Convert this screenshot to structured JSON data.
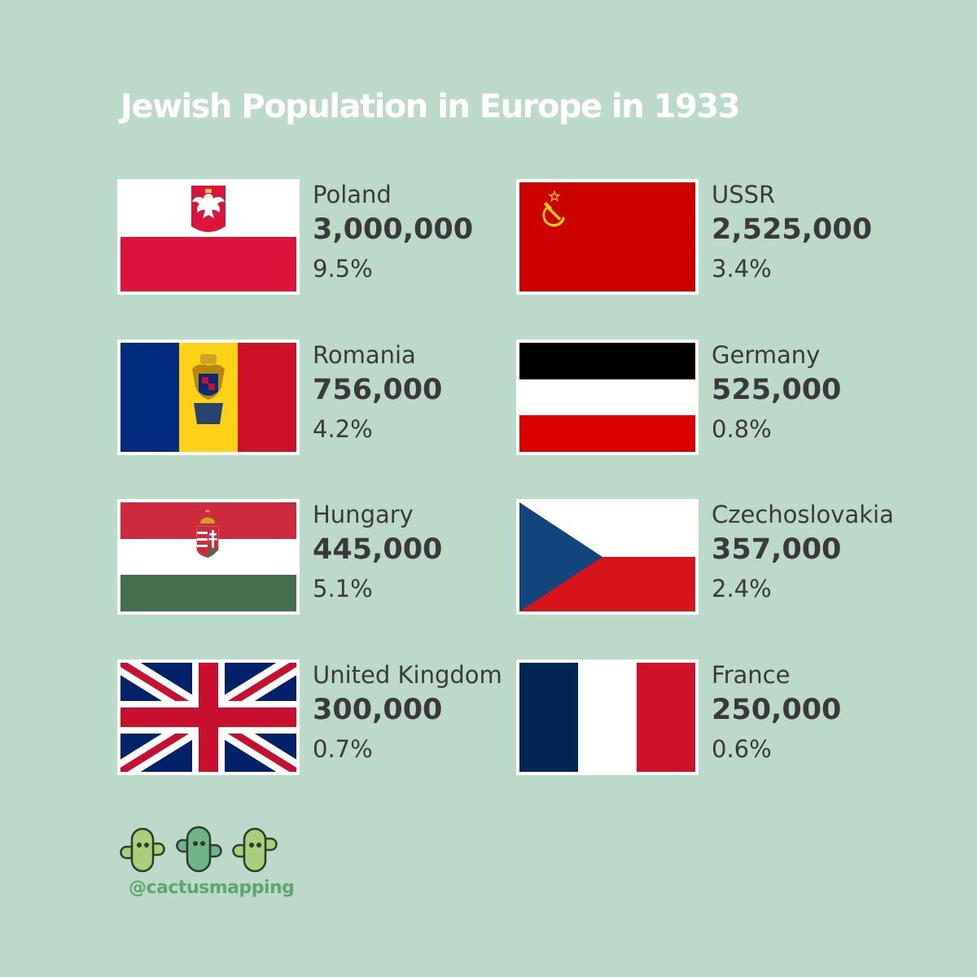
{
  "title": "Jewish Population in Europe in 1933",
  "entries": [
    {
      "country": "Poland",
      "population": "3,000,000",
      "percent": "9.5%",
      "flag": "poland-flag"
    },
    {
      "country": "USSR",
      "population": "2,525,000",
      "percent": "3.4%",
      "flag": "ussr-flag"
    },
    {
      "country": "Romania",
      "population": "756,000",
      "percent": "4.2%",
      "flag": "romania-flag"
    },
    {
      "country": "Germany",
      "population": "525,000",
      "percent": "0.8%",
      "flag": "germany-flag"
    },
    {
      "country": "Hungary",
      "population": "445,000",
      "percent": "5.1%",
      "flag": "hungary-flag"
    },
    {
      "country": "Czechoslovakia",
      "population": "357,000",
      "percent": "2.4%",
      "flag": "czechoslovakia-flag"
    },
    {
      "country": "United Kingdom",
      "population": "300,000",
      "percent": "0.7%",
      "flag": "united-kingdom-flag"
    },
    {
      "country": "France",
      "population": "250,000",
      "percent": "0.6%",
      "flag": "france-flag"
    }
  ],
  "branding": {
    "handle": "@cactusmapping",
    "logo_icon": "cactus-icon"
  },
  "colors": {
    "background": "#bcdaca",
    "title": "#ffffff",
    "text": "#3a3a3a",
    "handle": "#5aa86a"
  }
}
